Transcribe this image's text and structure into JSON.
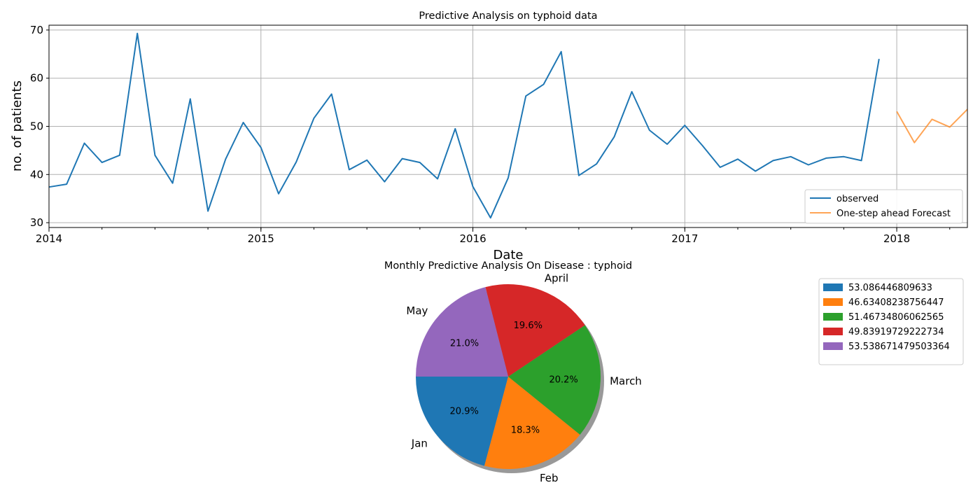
{
  "chart_data": [
    {
      "type": "line",
      "title": "Predictive Analysis on typhoid data",
      "xlabel": "Date",
      "ylabel": "no. of patients",
      "x_tick_labels": [
        "2014",
        "2015",
        "2016",
        "2017",
        "2018"
      ],
      "y_tick_labels": [
        "30",
        "40",
        "50",
        "60",
        "70"
      ],
      "xlim": [
        "2014-01",
        "2018-05"
      ],
      "ylim": [
        29,
        71
      ],
      "grid": true,
      "legend_position": "lower right",
      "series": [
        {
          "name": "observed",
          "color": "#1f77b4",
          "x": [
            "2014-01",
            "2014-02",
            "2014-03",
            "2014-04",
            "2014-05",
            "2014-06",
            "2014-07",
            "2014-08",
            "2014-09",
            "2014-10",
            "2014-11",
            "2014-12",
            "2015-01",
            "2015-02",
            "2015-03",
            "2015-04",
            "2015-05",
            "2015-06",
            "2015-07",
            "2015-08",
            "2015-09",
            "2015-10",
            "2015-11",
            "2015-12",
            "2016-01",
            "2016-02",
            "2016-03",
            "2016-04",
            "2016-05",
            "2016-06",
            "2016-07",
            "2016-08",
            "2016-09",
            "2016-10",
            "2016-11",
            "2016-12",
            "2017-01",
            "2017-02",
            "2017-03",
            "2017-04",
            "2017-05",
            "2017-06",
            "2017-07",
            "2017-08",
            "2017-09",
            "2017-10",
            "2017-11",
            "2017-12"
          ],
          "values": [
            37.4,
            38.0,
            46.5,
            42.5,
            44.0,
            69.3,
            44.0,
            38.2,
            55.7,
            32.4,
            43.2,
            50.8,
            45.6,
            36.0,
            42.6,
            51.7,
            56.7,
            41.0,
            43.0,
            38.5,
            43.3,
            42.5,
            39.1,
            49.5,
            37.5,
            31.0,
            39.3,
            56.3,
            58.7,
            65.5,
            39.8,
            42.2,
            47.8,
            57.2,
            49.2,
            46.3,
            50.2,
            46.0,
            41.5,
            43.2,
            40.7,
            42.9,
            43.7,
            42.0,
            43.4,
            43.7,
            42.9,
            64.0
          ]
        },
        {
          "name": "One-step ahead Forecast",
          "color": "#ff7f0e",
          "x": [
            "2018-01",
            "2018-02",
            "2018-03",
            "2018-04",
            "2018-05"
          ],
          "values": [
            53.086446809633,
            46.63408238756447,
            51.46734806062565,
            49.83919729222734,
            53.538671479503364
          ]
        }
      ]
    },
    {
      "type": "pie",
      "title": "Monthly Predictive Analysis On Disease : typhoid",
      "labels": [
        "Jan",
        "Feb",
        "March",
        "April",
        "May"
      ],
      "values": [
        53.086446809633,
        46.63408238756447,
        51.46734806062565,
        49.83919729222734,
        53.538671479503364
      ],
      "percent_labels": [
        "20.9%",
        "18.3%",
        "20.2%",
        "19.6%",
        "21.0%"
      ],
      "colors": [
        "#1f77b4",
        "#ff7f0e",
        "#2ca02c",
        "#d62728",
        "#9467bd"
      ],
      "shadow": true,
      "legend_position": "upper right",
      "legend_entries": [
        "53.086446809633",
        "46.63408238756447",
        "51.46734806062565",
        "49.83919729222734",
        "53.538671479503364"
      ]
    }
  ]
}
